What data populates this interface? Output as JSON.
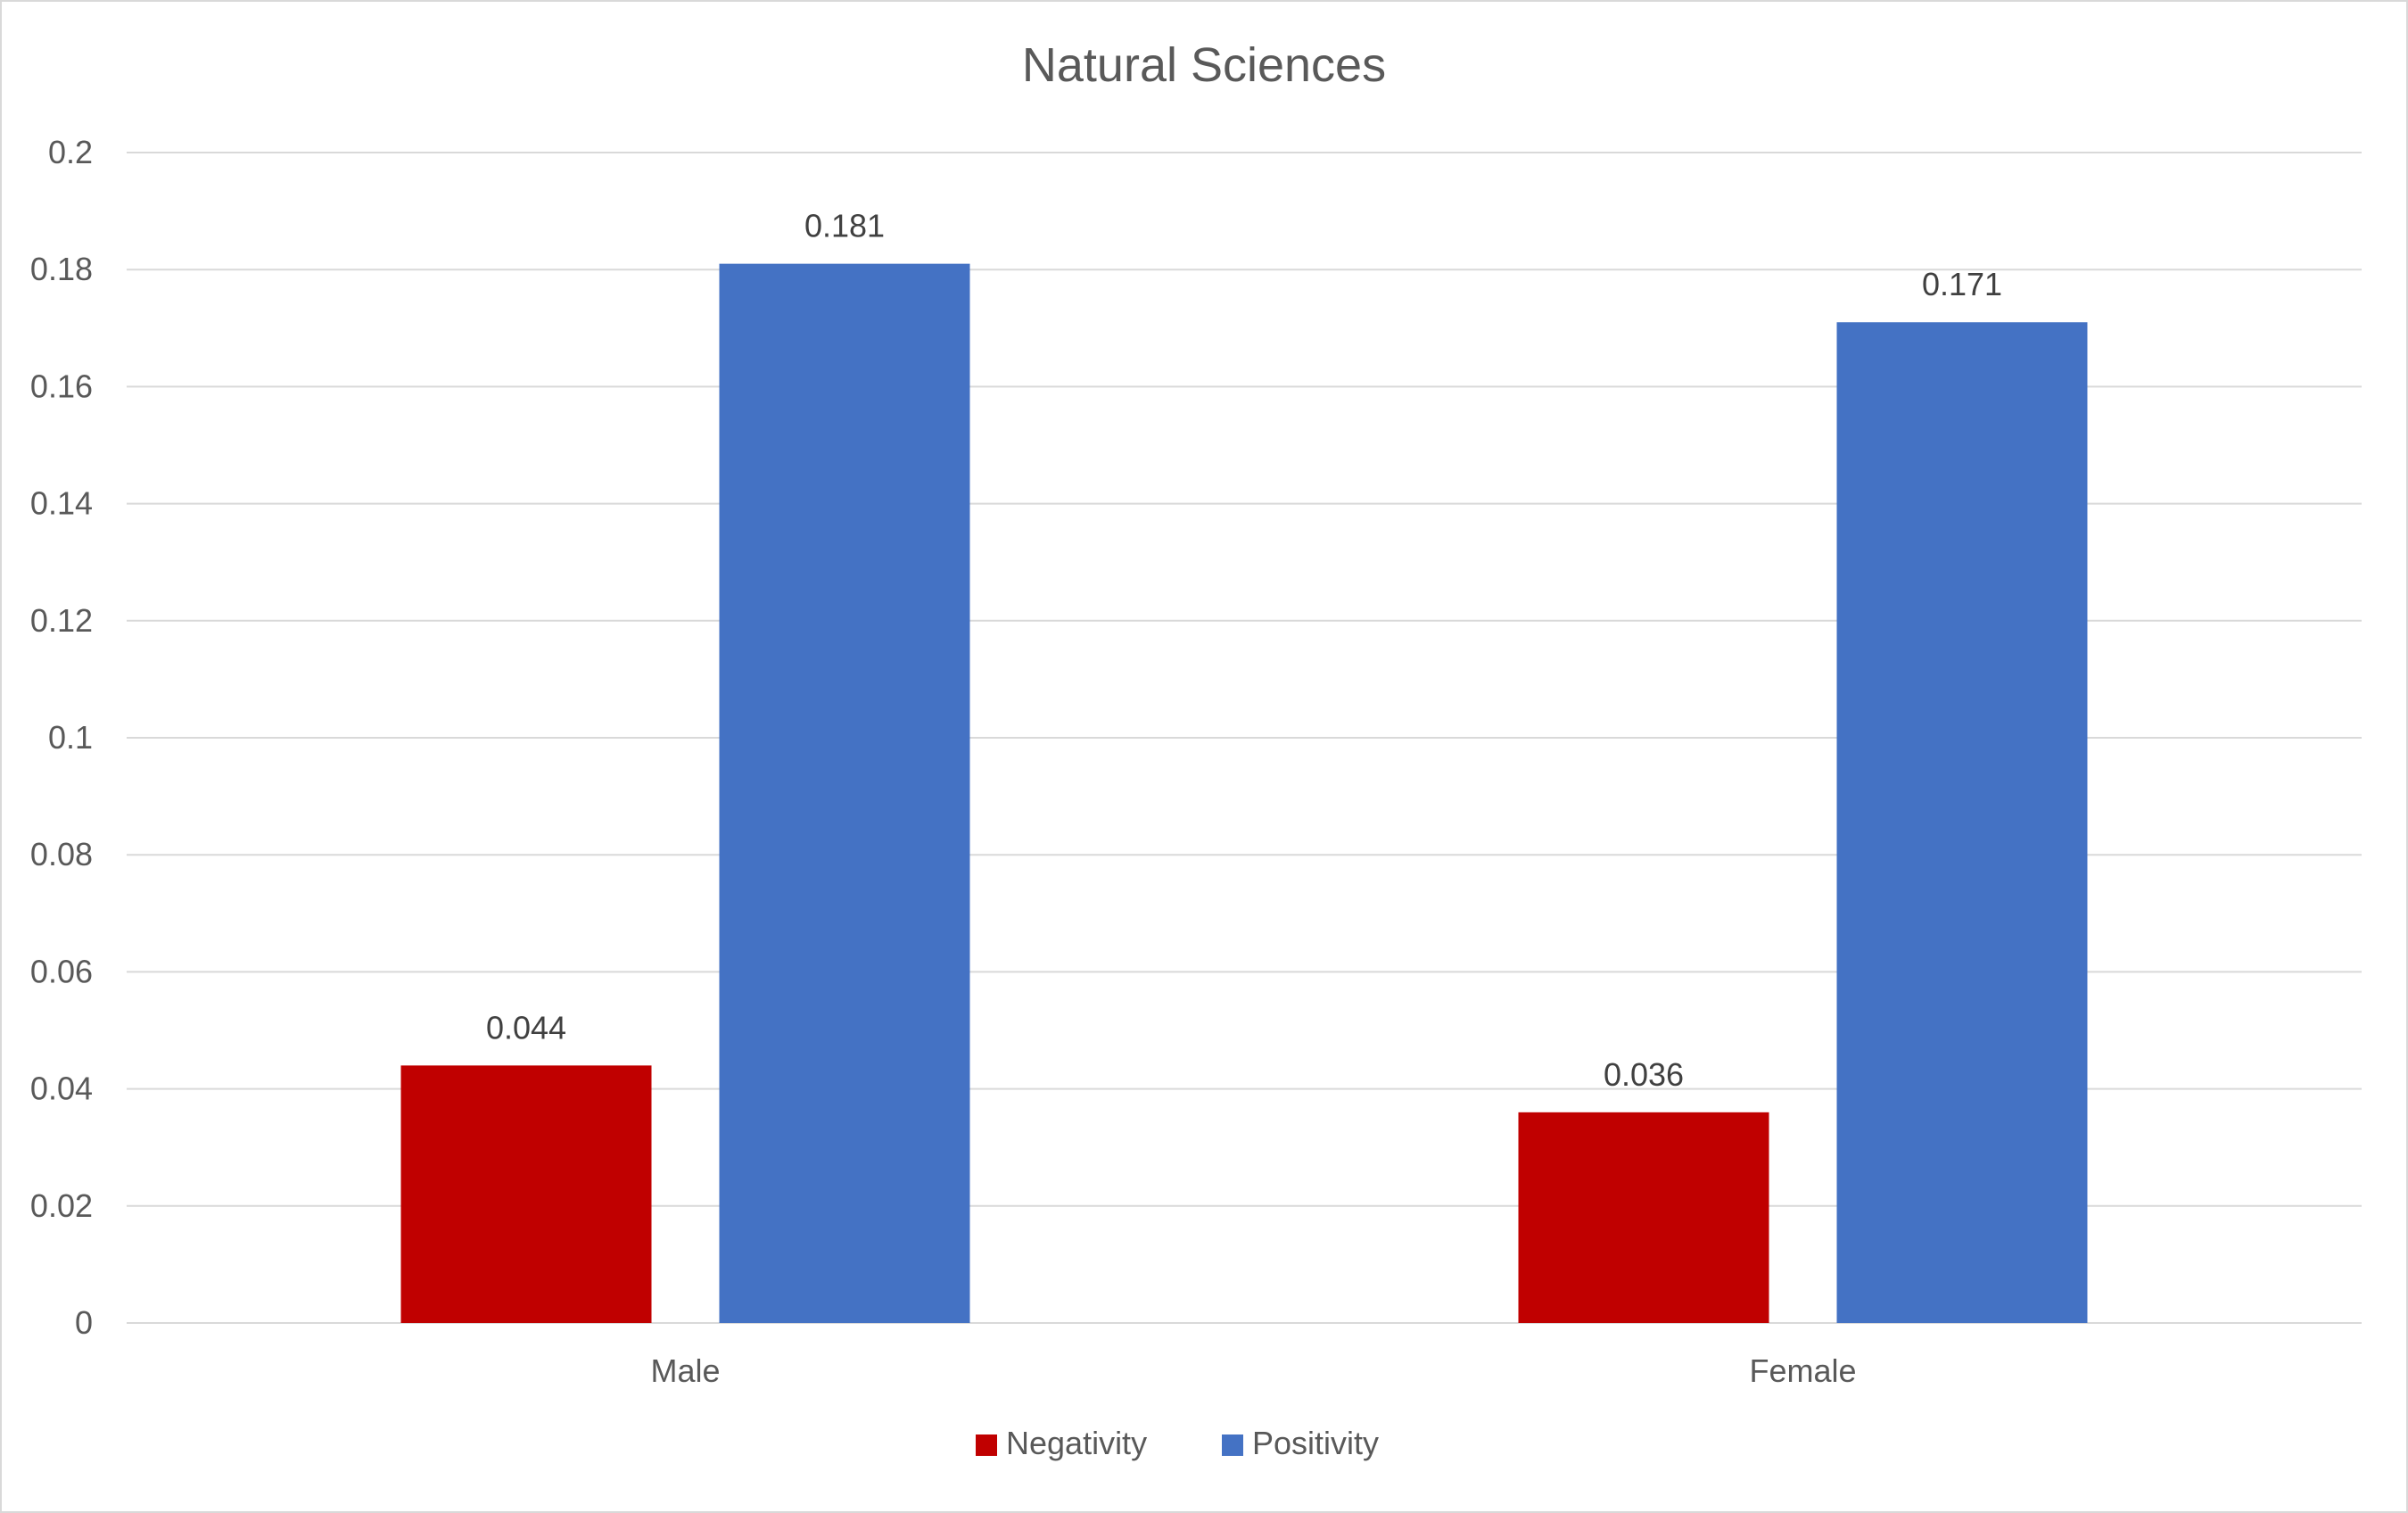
{
  "chart_data": {
    "type": "bar",
    "title": "Natural Sciences",
    "xlabel": "",
    "ylabel": "",
    "categories": [
      "Male",
      "Female"
    ],
    "series": [
      {
        "name": "Negativity",
        "values": [
          0.044,
          0.036
        ],
        "color": "#c00000"
      },
      {
        "name": "Positivity",
        "values": [
          0.181,
          0.171
        ],
        "color": "#4472c4"
      }
    ],
    "data_labels": [
      [
        "0.044",
        "0.036"
      ],
      [
        "0.181",
        "0.171"
      ]
    ],
    "ylim": [
      0,
      0.2
    ],
    "yticks": [
      "0",
      "0.02",
      "0.04",
      "0.06",
      "0.08",
      "0.1",
      "0.12",
      "0.14",
      "0.16",
      "0.18",
      "0.2"
    ],
    "grid": true,
    "legend_position": "bottom",
    "gridline_color": "#d9d9d9"
  }
}
